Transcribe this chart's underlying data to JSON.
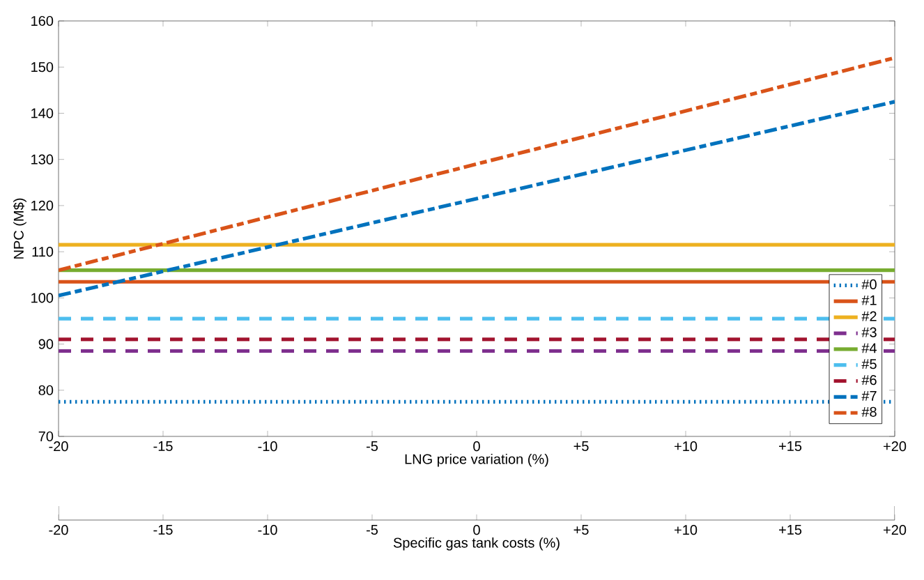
{
  "chart_data": {
    "type": "line",
    "xlabel": "LNG price variation (%)",
    "ylabel": "NPC (M$)",
    "x2label": "Specific gas tank costs (%)",
    "x": [
      -20,
      20
    ],
    "xlim": [
      -20,
      20
    ],
    "xticks": [
      -20,
      -15,
      -10,
      -5,
      0,
      {
        "value": 5,
        "label": "+5"
      },
      {
        "value": 10,
        "label": "+10"
      },
      {
        "value": 15,
        "label": "+15"
      },
      {
        "value": 20,
        "label": "+20"
      }
    ],
    "x2lim": [
      -20,
      20
    ],
    "x2ticks": [
      -20,
      -15,
      -10,
      -5,
      0,
      {
        "value": 5,
        "label": "+5"
      },
      {
        "value": 10,
        "label": "+10"
      },
      {
        "value": 15,
        "label": "+15"
      },
      {
        "value": 20,
        "label": "+20"
      }
    ],
    "ylim": [
      70,
      160
    ],
    "yticks": [
      70,
      80,
      90,
      100,
      110,
      120,
      130,
      140,
      150,
      160
    ],
    "grid": false,
    "legend": "bottom right",
    "marker": "none",
    "series": [
      {
        "name": "#0",
        "color": "#0072bd",
        "line_style": "dotted",
        "values": [
          77.5,
          77.5
        ]
      },
      {
        "name": "#1",
        "color": "#d95319",
        "line_style": "solid",
        "values": [
          103.5,
          103.5
        ]
      },
      {
        "name": "#2",
        "color": "#edb120",
        "line_style": "solid",
        "values": [
          111.5,
          111.5
        ]
      },
      {
        "name": "#3",
        "color": "#7e2f8e",
        "line_style": "dashed",
        "values": [
          88.5,
          88.5
        ]
      },
      {
        "name": "#4",
        "color": "#77ac30",
        "line_style": "solid",
        "values": [
          106,
          106
        ]
      },
      {
        "name": "#5",
        "color": "#4dbeee",
        "line_style": "dashed",
        "values": [
          95.5,
          95.5
        ]
      },
      {
        "name": "#6",
        "color": "#a2142f",
        "line_style": "dashed",
        "values": [
          91,
          91
        ]
      },
      {
        "name": "#7",
        "color": "#0072bd",
        "line_style": "dashdot",
        "values": [
          100.5,
          142.5
        ]
      },
      {
        "name": "#8",
        "color": "#d95319",
        "line_style": "dashdot",
        "values": [
          106,
          152
        ]
      }
    ]
  }
}
